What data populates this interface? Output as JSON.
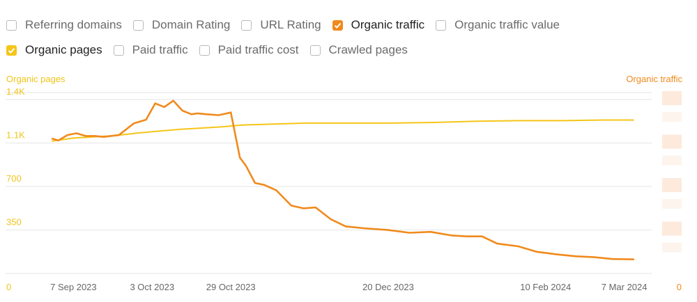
{
  "toggles": [
    {
      "label": "Referring domains",
      "checked": false,
      "color": ""
    },
    {
      "label": "Domain Rating",
      "checked": false,
      "color": ""
    },
    {
      "label": "URL Rating",
      "checked": false,
      "color": ""
    },
    {
      "label": "Organic traffic",
      "checked": true,
      "color": "#f08a1c"
    },
    {
      "label": "Organic traffic value",
      "checked": false,
      "color": ""
    },
    {
      "label": "Organic pages",
      "checked": true,
      "color": "#f5c518"
    },
    {
      "label": "Paid traffic",
      "checked": false,
      "color": ""
    },
    {
      "label": "Paid traffic cost",
      "checked": false,
      "color": ""
    },
    {
      "label": "Crawled pages",
      "checked": false,
      "color": ""
    }
  ],
  "chart_data": {
    "type": "line",
    "left_axis_label": "Organic pages",
    "right_axis_label": "Organic traffic",
    "y_left_ticks": [
      "0",
      "350",
      "700",
      "1.1K",
      "1.4K"
    ],
    "y_left_tick_values": [
      0,
      350,
      700,
      1050,
      1400
    ],
    "ylim_left": [
      0,
      1400
    ],
    "y_right_ticks": [
      "0"
    ],
    "right_axis_values_obscured": true,
    "ylim_right": [
      0,
      1
    ],
    "x_ticks": [
      "7 Sep 2023",
      "3 Oct 2023",
      "29 Oct 2023",
      "20 Dec 2023",
      "10 Feb 2024",
      "7 Mar 2024"
    ],
    "xlim": [
      "2023-08-31",
      "2024-03-11"
    ],
    "grid": true,
    "colors": {
      "organic_pages": "#f5c518",
      "organic_traffic": "#f08a1c",
      "grid": "#e6e6e6",
      "left_axis": "#f0c419",
      "right_axis": "#f08a1c"
    },
    "series": [
      {
        "name": "Organic pages",
        "axis": "left",
        "color": "#f5c518",
        "x": [
          "2023-08-31",
          "2023-09-07",
          "2023-09-14",
          "2023-09-21",
          "2023-09-28",
          "2023-10-05",
          "2023-10-12",
          "2023-10-19",
          "2023-10-26",
          "2023-11-02",
          "2023-11-09",
          "2023-11-23",
          "2023-12-07",
          "2023-12-21",
          "2024-01-04",
          "2024-01-18",
          "2024-02-01",
          "2024-02-15",
          "2024-02-29",
          "2024-03-10"
        ],
        "values": [
          1065,
          1090,
          1100,
          1110,
          1130,
          1145,
          1160,
          1170,
          1180,
          1195,
          1200,
          1210,
          1210,
          1210,
          1215,
          1225,
          1230,
          1230,
          1235,
          1235
        ]
      },
      {
        "name": "Organic traffic",
        "axis": "right",
        "color": "#f08a1c",
        "x": [
          "2023-08-31",
          "2023-09-02",
          "2023-09-05",
          "2023-09-08",
          "2023-09-11",
          "2023-09-14",
          "2023-09-17",
          "2023-09-22",
          "2023-09-27",
          "2023-10-01",
          "2023-10-04",
          "2023-10-07",
          "2023-10-10",
          "2023-10-13",
          "2023-10-16",
          "2023-10-18",
          "2023-10-21",
          "2023-10-25",
          "2023-10-29",
          "2023-11-01",
          "2023-11-03",
          "2023-11-06",
          "2023-11-09",
          "2023-11-13",
          "2023-11-18",
          "2023-11-22",
          "2023-11-26",
          "2023-12-01",
          "2023-12-06",
          "2023-12-12",
          "2023-12-20",
          "2023-12-27",
          "2024-01-03",
          "2024-01-10",
          "2024-01-15",
          "2024-01-20",
          "2024-01-25",
          "2024-02-01",
          "2024-02-07",
          "2024-02-14",
          "2024-02-20",
          "2024-02-26",
          "2024-03-03",
          "2024-03-10"
        ],
        "values": [
          0.745,
          0.735,
          0.765,
          0.775,
          0.76,
          0.76,
          0.755,
          0.765,
          0.83,
          0.85,
          0.94,
          0.92,
          0.955,
          0.9,
          0.88,
          0.885,
          0.88,
          0.875,
          0.89,
          0.64,
          0.595,
          0.5,
          0.49,
          0.46,
          0.375,
          0.36,
          0.365,
          0.3,
          0.26,
          0.25,
          0.24,
          0.225,
          0.23,
          0.21,
          0.205,
          0.205,
          0.165,
          0.15,
          0.12,
          0.105,
          0.095,
          0.09,
          0.08,
          0.078
        ]
      }
    ]
  }
}
